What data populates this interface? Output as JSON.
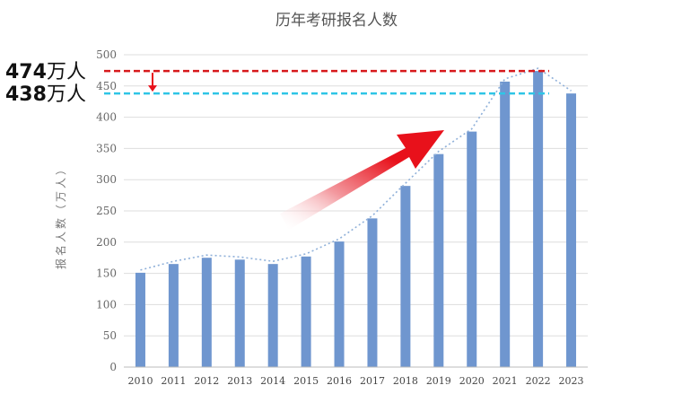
{
  "chart_data": {
    "type": "bar",
    "title": "历年考研报名人数",
    "ylabel": "报名人数（万人）",
    "xlabel": "",
    "categories": [
      "2010",
      "2011",
      "2012",
      "2013",
      "2014",
      "2015",
      "2016",
      "2017",
      "2018",
      "2019",
      "2020",
      "2021",
      "2022",
      "2023"
    ],
    "values": [
      151,
      165,
      175,
      172,
      165,
      177,
      201,
      238,
      290,
      341,
      377,
      457,
      474,
      438
    ],
    "ylim": [
      0,
      500
    ],
    "yticks": [
      0,
      50,
      100,
      150,
      200,
      250,
      300,
      350,
      400,
      450,
      500
    ],
    "grid": true,
    "trend_line": true,
    "annotations": [
      {
        "value": 474,
        "number": "474",
        "unit": "万人",
        "color": "#d7191c",
        "style": "dashed"
      },
      {
        "value": 438,
        "number": "438",
        "unit": "万人",
        "color": "#2ec5e6",
        "style": "dashed"
      }
    ],
    "colors": {
      "bar": "#6f96cf",
      "grid": "#dddddd",
      "trend": "#8fb0d9",
      "arrow": "#e8111b"
    }
  }
}
